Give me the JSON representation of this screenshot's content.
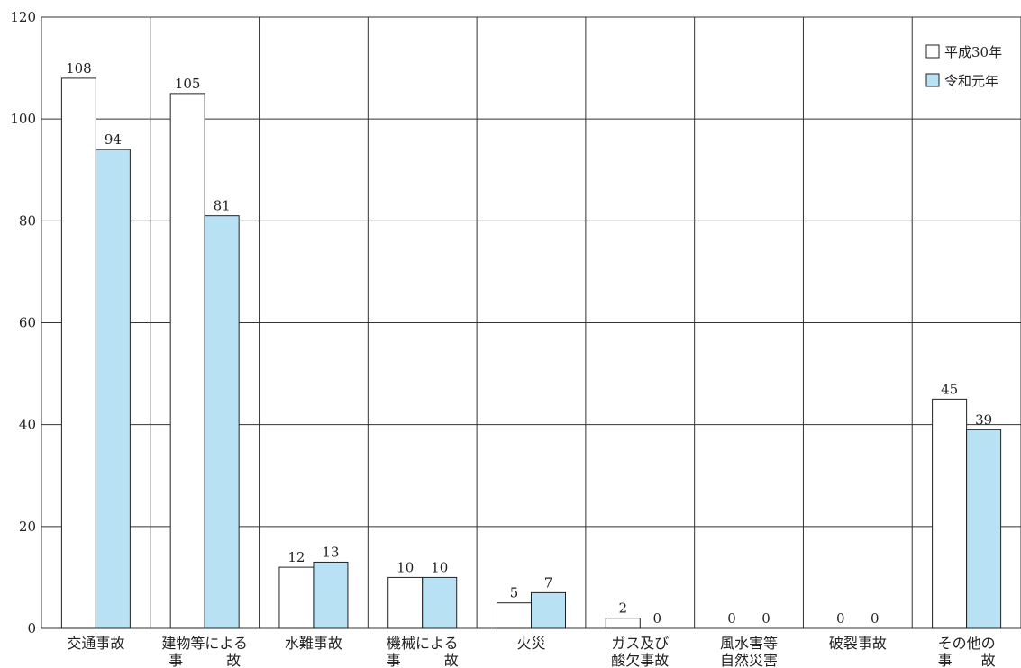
{
  "chart_data": {
    "type": "bar",
    "categories": [
      [
        "交通事故"
      ],
      [
        "建物等による",
        "事　　　故"
      ],
      [
        "水難事故"
      ],
      [
        "機械による",
        "事　　　故"
      ],
      [
        "火災"
      ],
      [
        "ガス及び",
        "酸欠事故"
      ],
      [
        "風水害等",
        "自然災害"
      ],
      [
        "破裂事故"
      ],
      [
        "その他の",
        "事　　故"
      ]
    ],
    "series": [
      {
        "name": "平成30年",
        "values": [
          108,
          105,
          12,
          10,
          5,
          2,
          0,
          0,
          45
        ],
        "color": "#ffffff"
      },
      {
        "name": "令和元年",
        "values": [
          94,
          81,
          13,
          10,
          7,
          0,
          0,
          0,
          39
        ],
        "color": "#b8e1f4"
      }
    ],
    "ylim": [
      0,
      120
    ],
    "yticks": [
      "0",
      "20",
      "40",
      "60",
      "80",
      "100",
      "120"
    ],
    "grid": true,
    "legend_position": "top-right"
  }
}
